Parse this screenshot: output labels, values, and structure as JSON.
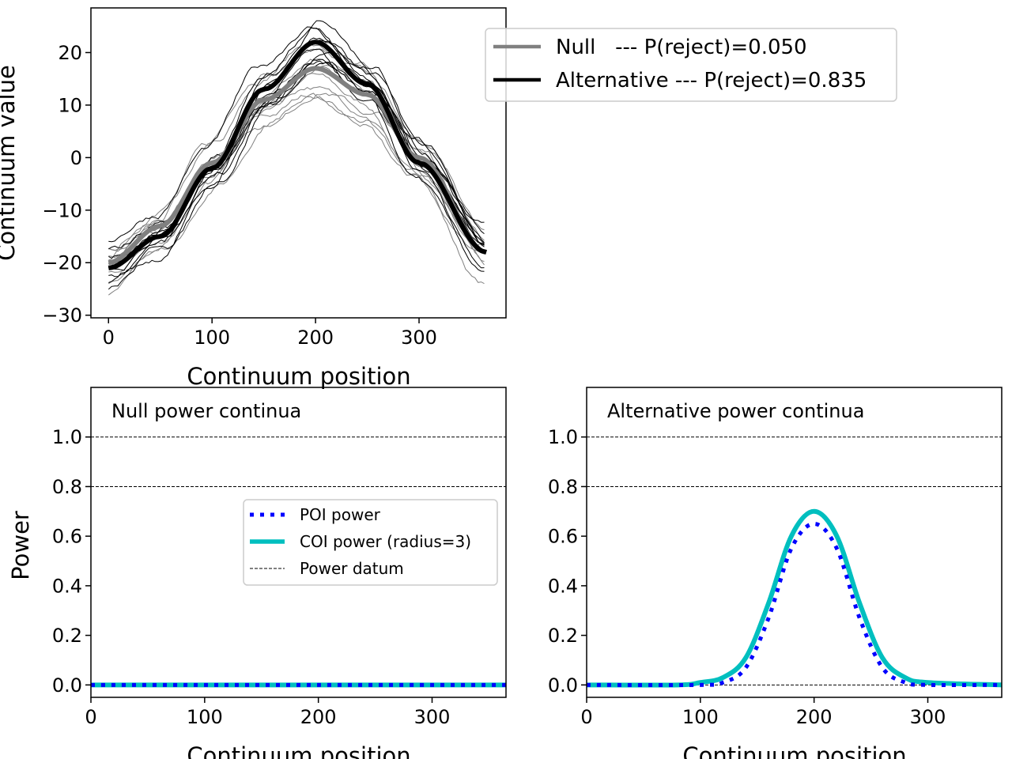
{
  "chart_data": [
    {
      "type": "line",
      "panel": "top",
      "xlabel": "Continuum position",
      "ylabel": "Continuum value",
      "xlim": [
        -17,
        384
      ],
      "ylim": [
        -30.5,
        28.5
      ],
      "xticks": [
        0,
        100,
        200,
        300
      ],
      "yticks": [
        -30,
        -20,
        -10,
        0,
        10,
        20
      ],
      "xtick_labels": [
        "0",
        "100",
        "200",
        "300"
      ],
      "ytick_labels": [
        "−30",
        "−20",
        "−10",
        "0",
        "10",
        "20"
      ],
      "legend": {
        "placement": "top-right",
        "entries": [
          {
            "label": "Null   --- P(reject)=0.050",
            "color": "#808080"
          },
          {
            "label": "Alternative --- P(reject)=0.835",
            "color": "#000000"
          }
        ]
      },
      "series": [
        {
          "name": "Null",
          "color": "#808080",
          "x": [
            0,
            50,
            100,
            150,
            200,
            250,
            300,
            365
          ],
          "y": [
            -20,
            -13,
            -1,
            11,
            17,
            12,
            0,
            -18
          ]
        },
        {
          "name": "Alternative",
          "color": "#000000",
          "x": [
            0,
            50,
            100,
            150,
            200,
            250,
            300,
            365
          ],
          "y": [
            -21,
            -15,
            -2,
            13,
            22,
            14,
            -1,
            -18
          ]
        }
      ]
    },
    {
      "type": "line",
      "panel": "bottom-left",
      "annotation": "Null power continua",
      "xlabel": "Continuum position",
      "ylabel": "Power",
      "xlim": [
        0,
        365
      ],
      "ylim": [
        -0.05,
        1.2
      ],
      "xticks": [
        0,
        100,
        200,
        300
      ],
      "yticks": [
        0.0,
        0.2,
        0.4,
        0.6,
        0.8,
        1.0
      ],
      "xtick_labels": [
        "0",
        "100",
        "200",
        "300"
      ],
      "ytick_labels": [
        "0.0",
        "0.2",
        "0.4",
        "0.6",
        "0.8",
        "1.0"
      ],
      "power_datum": [
        0.0,
        0.8,
        1.0
      ],
      "legend": {
        "placement": "center-right",
        "entries": [
          {
            "label": "POI power",
            "color": "#0000ff"
          },
          {
            "label": "COI power (radius=3)",
            "color": "#00bfbf"
          },
          {
            "label": "Power datum",
            "color": "#000000"
          }
        ]
      },
      "series": [
        {
          "name": "POI power",
          "color": "#0000ff",
          "x": [
            0,
            100,
            200,
            300,
            365
          ],
          "y": [
            0.0,
            0.0,
            0.0,
            0.0,
            0.0
          ]
        },
        {
          "name": "COI power (radius=3)",
          "color": "#00bfbf",
          "x": [
            0,
            100,
            200,
            300,
            365
          ],
          "y": [
            0.0,
            0.0,
            0.0,
            0.0,
            0.0
          ]
        }
      ]
    },
    {
      "type": "line",
      "panel": "bottom-right",
      "annotation": "Alternative power continua",
      "xlabel": "Continuum position",
      "ylabel": "",
      "xlim": [
        0,
        365
      ],
      "ylim": [
        -0.05,
        1.2
      ],
      "xticks": [
        0,
        100,
        200,
        300
      ],
      "yticks": [
        0.0,
        0.2,
        0.4,
        0.6,
        0.8,
        1.0
      ],
      "xtick_labels": [
        "0",
        "100",
        "200",
        "300"
      ],
      "ytick_labels": [
        "0.0",
        "0.2",
        "0.4",
        "0.6",
        "0.8",
        "1.0"
      ],
      "power_datum": [
        0.0,
        0.8,
        1.0
      ],
      "series": [
        {
          "name": "POI power",
          "color": "#0000ff",
          "x": [
            0,
            100,
            120,
            140,
            160,
            180,
            200,
            220,
            240,
            260,
            280,
            300,
            365
          ],
          "y": [
            0.0,
            0.0,
            0.01,
            0.07,
            0.27,
            0.55,
            0.65,
            0.55,
            0.27,
            0.07,
            0.01,
            0.0,
            0.0
          ]
        },
        {
          "name": "COI power (radius=3)",
          "color": "#00bfbf",
          "x": [
            0,
            80,
            100,
            120,
            140,
            160,
            180,
            200,
            220,
            240,
            260,
            280,
            300,
            365
          ],
          "y": [
            0.0,
            0.0,
            0.01,
            0.03,
            0.11,
            0.33,
            0.6,
            0.7,
            0.6,
            0.33,
            0.11,
            0.03,
            0.01,
            0.0
          ]
        }
      ]
    }
  ]
}
